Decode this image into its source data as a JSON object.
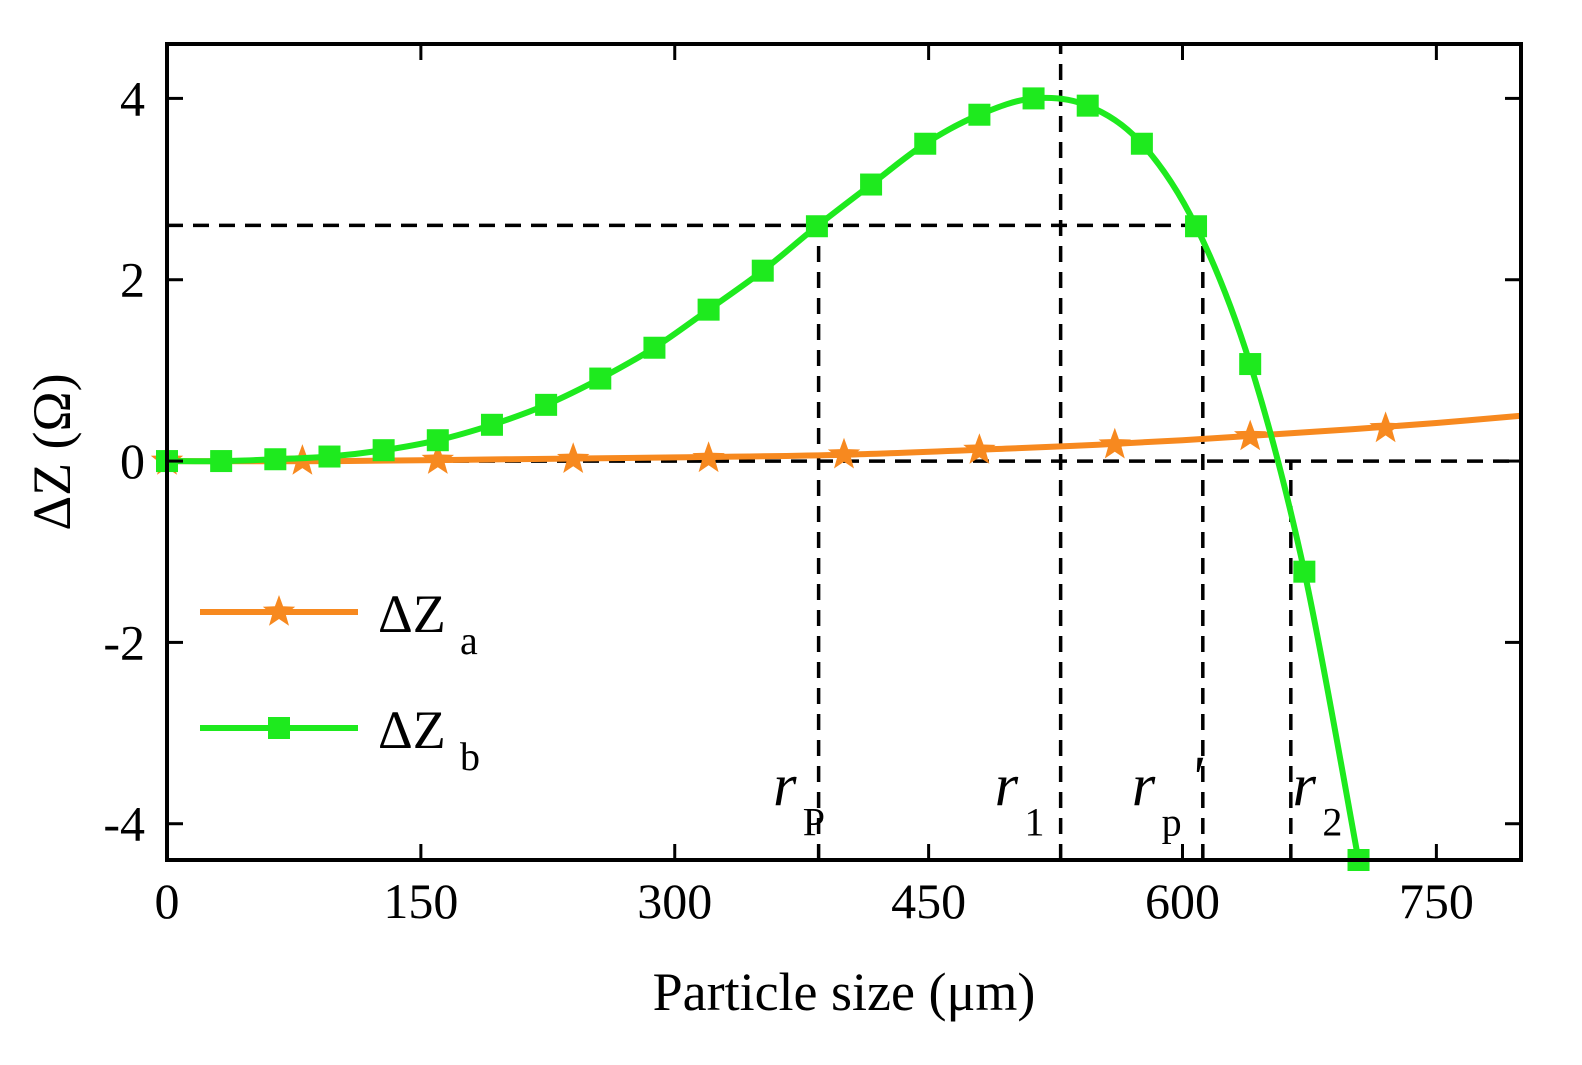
{
  "chart_data": {
    "type": "line",
    "title": "",
    "xlabel": "Particle size (μm)",
    "ylabel": "ΔZ (Ω)",
    "xlim": [
      0,
      800
    ],
    "ylim": [
      -4.4,
      4.6
    ],
    "xticks": [
      0,
      150,
      300,
      450,
      600,
      750
    ],
    "xtick_labels": [
      "0",
      "150",
      "300",
      "450",
      "600",
      "750"
    ],
    "yticks": [
      -4,
      -2,
      0,
      2,
      4
    ],
    "ytick_labels": [
      "-4",
      "-2",
      "0",
      "2",
      "4"
    ],
    "legend_position": "lower-left",
    "series": [
      {
        "name": "ΔZa",
        "label_main": "ΔZ",
        "label_sub": "a",
        "color": "#f7891f",
        "marker": "star",
        "curve_x": [
          0,
          100,
          200,
          300,
          400,
          500,
          550,
          600,
          650,
          700,
          750,
          800
        ],
        "curve_y": [
          0,
          0.0,
          0.02,
          0.04,
          0.07,
          0.14,
          0.18,
          0.23,
          0.29,
          0.35,
          0.42,
          0.5
        ],
        "marker_x": [
          0,
          80,
          160,
          240,
          320,
          400,
          480,
          560,
          640,
          720
        ],
        "marker_y": [
          0,
          0.0,
          0.01,
          0.02,
          0.03,
          0.07,
          0.12,
          0.18,
          0.27,
          0.36
        ]
      },
      {
        "name": "ΔZb",
        "label_main": "ΔZ",
        "label_sub": "b",
        "color": "#1eea1e",
        "marker": "square",
        "curve_x": [
          0,
          32,
          64,
          96,
          128,
          160,
          192,
          224,
          256,
          288,
          320,
          352,
          384,
          416,
          448,
          480,
          512,
          544,
          576,
          608,
          640,
          672,
          704
        ],
        "curve_y": [
          0,
          0.0,
          0.02,
          0.05,
          0.12,
          0.23,
          0.4,
          0.62,
          0.91,
          1.25,
          1.67,
          2.1,
          2.59,
          3.05,
          3.5,
          3.82,
          4.0,
          3.92,
          3.5,
          2.59,
          1.07,
          -1.22,
          -4.4
        ],
        "marker_x": [
          0,
          32,
          64,
          96,
          128,
          160,
          192,
          224,
          256,
          288,
          320,
          352,
          384,
          416,
          448,
          480,
          512,
          544,
          576,
          608,
          640,
          672,
          704
        ],
        "marker_y": [
          0,
          0.0,
          0.02,
          0.05,
          0.12,
          0.23,
          0.4,
          0.62,
          0.91,
          1.25,
          1.67,
          2.1,
          2.59,
          3.05,
          3.5,
          3.82,
          4.0,
          3.92,
          3.5,
          2.59,
          1.07,
          -1.22,
          -4.4
        ]
      }
    ],
    "reference_lines": [
      {
        "orientation": "horizontal",
        "y": 2.6,
        "x_range": [
          0,
          612
        ],
        "style": "dashed"
      },
      {
        "orientation": "horizontal",
        "y": 0,
        "x_range": [
          0,
          800
        ],
        "style": "dashed"
      },
      {
        "orientation": "vertical",
        "x": 385,
        "y_range": [
          -4.4,
          2.6
        ],
        "style": "dashed"
      },
      {
        "orientation": "vertical",
        "x": 528,
        "y_range": [
          -4.4,
          4.6
        ],
        "style": "dashed"
      },
      {
        "orientation": "vertical",
        "x": 612,
        "y_range": [
          -4.4,
          2.6
        ],
        "style": "dashed"
      },
      {
        "orientation": "vertical",
        "x": 664,
        "y_range": [
          -4.4,
          0
        ],
        "style": "dashed"
      }
    ],
    "annotations": [
      {
        "symbol": "r",
        "sub": "P",
        "prime": "",
        "x": 365,
        "y": -3.8
      },
      {
        "symbol": "r",
        "sub": "1",
        "prime": "",
        "x": 496,
        "y": -3.8
      },
      {
        "symbol": "r",
        "sub": "p",
        "prime": "'",
        "x": 577,
        "y": -3.8
      },
      {
        "symbol": "r",
        "sub": "2",
        "prime": "",
        "x": 672,
        "y": -3.8
      }
    ]
  }
}
